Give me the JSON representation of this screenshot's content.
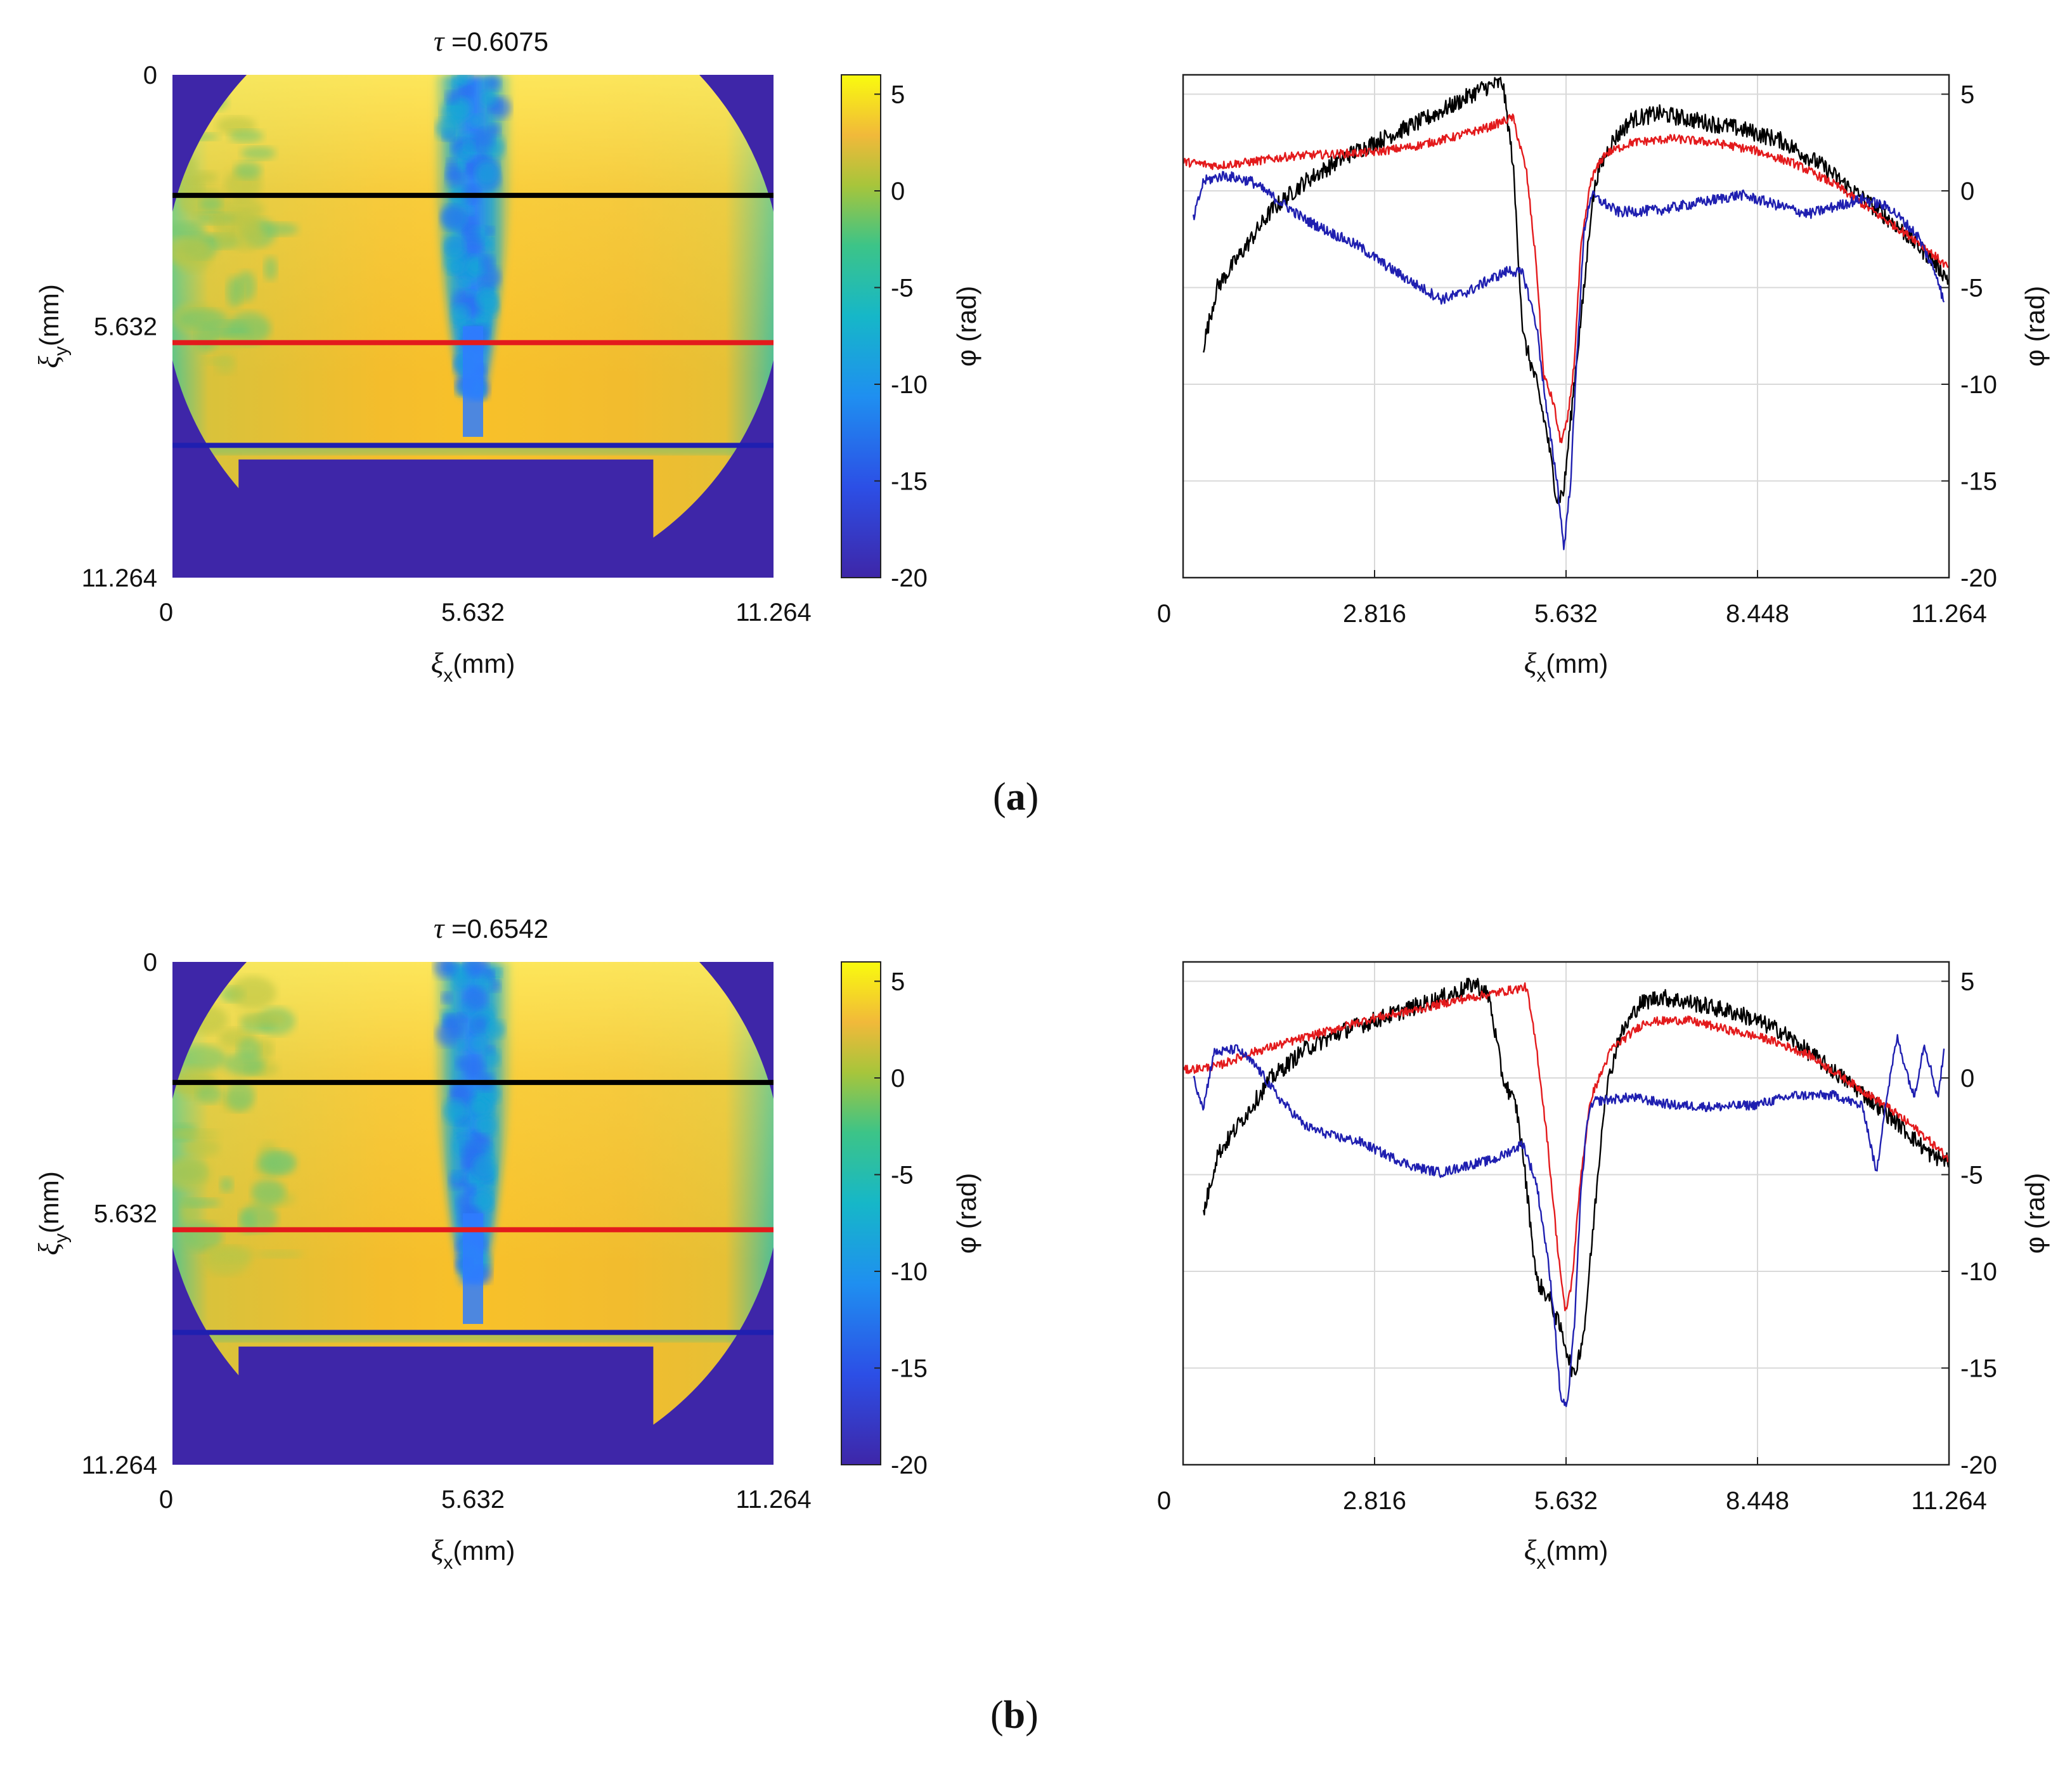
{
  "figure_labels": {
    "a_open": "(",
    "a_letter": "a",
    "a_close": ")",
    "b_open": "(",
    "b_letter": "b",
    "b_close": ")"
  },
  "colors": {
    "black_line": "#000000",
    "red_line": "#e31a1c",
    "blue_line": "#1f1fb0",
    "outside": "#3e26a8",
    "jet_core": "#2f7cff",
    "background_field": "#f6c42a"
  },
  "chart_data": [
    {
      "type": "heatmap",
      "id": "map_a",
      "tau_symbol": "τ",
      "tau_text": " =0.6075",
      "xlabel_symbol": "ξ",
      "xlabel_sub": "x",
      "xlabel_unit": "(mm)",
      "ylabel_symbol": "ξ",
      "ylabel_sub": "y",
      "ylabel_unit": "(mm)",
      "xticks": [
        "0",
        "5.632",
        "11.264"
      ],
      "yticks": [
        "0",
        "5.632",
        "11.264"
      ],
      "xlim": [
        0,
        11.264
      ],
      "ylim": [
        0,
        11.264
      ],
      "profile_rows_mm": {
        "black": 2.7,
        "red": 6.0,
        "blue": 8.3
      },
      "colorbar": {
        "label": "φ (rad)",
        "range": [
          -20,
          6
        ],
        "ticks": [
          "5",
          "0",
          "-5",
          "-10",
          "-15",
          "-20"
        ],
        "tick_values": [
          5,
          0,
          -5,
          -10,
          -15,
          -20
        ]
      }
    },
    {
      "type": "line",
      "id": "profile_a",
      "xlabel_symbol": "ξ",
      "xlabel_sub": "x",
      "xlabel_unit": "(mm)",
      "ylabel": "φ (rad)",
      "xlim": [
        0,
        11.264
      ],
      "ylim": [
        -20,
        6
      ],
      "xticks": [
        "0",
        "2.816",
        "5.632",
        "8.448",
        "11.264"
      ],
      "xtick_values": [
        0,
        2.816,
        5.632,
        8.448,
        11.264
      ],
      "yticks": [
        "5",
        "0",
        "-5",
        "-10",
        "-15",
        "-20"
      ],
      "ytick_values": [
        5,
        0,
        -5,
        -10,
        -15,
        -20
      ],
      "grid": true,
      "series": [
        {
          "name": "black",
          "noise": 0.9,
          "points": [
            [
              0.3,
              -8
            ],
            [
              0.5,
              -5
            ],
            [
              0.9,
              -3
            ],
            [
              1.3,
              -1
            ],
            [
              1.8,
              0.5
            ],
            [
              2.4,
              1.8
            ],
            [
              3.0,
              2.8
            ],
            [
              3.5,
              3.6
            ],
            [
              4.0,
              4.5
            ],
            [
              4.4,
              5.3
            ],
            [
              4.7,
              5.6
            ],
            [
              4.85,
              1.5
            ],
            [
              5.0,
              -7.5
            ],
            [
              5.2,
              -10
            ],
            [
              5.35,
              -12.5
            ],
            [
              5.5,
              -16.0
            ],
            [
              5.6,
              -15.5
            ],
            [
              5.75,
              -10
            ],
            [
              5.9,
              -5
            ],
            [
              6.0,
              -1
            ],
            [
              6.1,
              1
            ],
            [
              6.3,
              2.5
            ],
            [
              6.6,
              3.7
            ],
            [
              7.0,
              4.0
            ],
            [
              7.6,
              3.6
            ],
            [
              8.2,
              3.2
            ],
            [
              8.8,
              2.6
            ],
            [
              9.4,
              1.3
            ],
            [
              10.0,
              -0.4
            ],
            [
              10.5,
              -1.8
            ],
            [
              11.0,
              -3.5
            ],
            [
              11.264,
              -4.6
            ]
          ]
        },
        {
          "name": "red",
          "noise": 0.45,
          "points": [
            [
              0,
              1.5
            ],
            [
              0.5,
              1.3
            ],
            [
              1.0,
              1.5
            ],
            [
              1.6,
              1.8
            ],
            [
              2.2,
              1.9
            ],
            [
              2.8,
              2.0
            ],
            [
              3.4,
              2.3
            ],
            [
              4.0,
              2.8
            ],
            [
              4.5,
              3.3
            ],
            [
              4.85,
              3.8
            ],
            [
              5.05,
              1
            ],
            [
              5.2,
              -4
            ],
            [
              5.3,
              -9.5
            ],
            [
              5.45,
              -11.0
            ],
            [
              5.55,
              -13.0
            ],
            [
              5.65,
              -12.0
            ],
            [
              5.75,
              -9
            ],
            [
              5.85,
              -3
            ],
            [
              6.0,
              0.6
            ],
            [
              6.2,
              1.9
            ],
            [
              6.6,
              2.5
            ],
            [
              7.2,
              2.7
            ],
            [
              7.8,
              2.5
            ],
            [
              8.4,
              2.1
            ],
            [
              9.0,
              1.4
            ],
            [
              9.6,
              0.3
            ],
            [
              10.2,
              -1.2
            ],
            [
              10.8,
              -2.6
            ],
            [
              11.264,
              -4.0
            ]
          ]
        },
        {
          "name": "blue",
          "noise": 0.55,
          "points": [
            [
              0.15,
              -1.5
            ],
            [
              0.3,
              0.5
            ],
            [
              0.6,
              0.8
            ],
            [
              1.0,
              0.5
            ],
            [
              1.4,
              -0.5
            ],
            [
              1.8,
              -1.5
            ],
            [
              2.2,
              -2.2
            ],
            [
              2.6,
              -2.9
            ],
            [
              3.0,
              -3.9
            ],
            [
              3.4,
              -4.8
            ],
            [
              3.8,
              -5.6
            ],
            [
              4.2,
              -5.2
            ],
            [
              4.5,
              -4.6
            ],
            [
              4.8,
              -4.1
            ],
            [
              5.0,
              -4.3
            ],
            [
              5.2,
              -7.0
            ],
            [
              5.35,
              -11.5
            ],
            [
              5.5,
              -15.0
            ],
            [
              5.6,
              -18.5
            ],
            [
              5.7,
              -15
            ],
            [
              5.8,
              -8
            ],
            [
              5.9,
              -2
            ],
            [
              6.0,
              -0.2
            ],
            [
              6.4,
              -1.1
            ],
            [
              7.0,
              -1.0
            ],
            [
              7.6,
              -0.6
            ],
            [
              8.2,
              -0.2
            ],
            [
              8.8,
              -0.8
            ],
            [
              9.2,
              -1.2
            ],
            [
              9.6,
              -0.8
            ],
            [
              10.0,
              -0.4
            ],
            [
              10.4,
              -0.9
            ],
            [
              10.8,
              -2.3
            ],
            [
              11.1,
              -4.5
            ],
            [
              11.2,
              -6.0
            ]
          ]
        }
      ]
    },
    {
      "type": "heatmap",
      "id": "map_b",
      "tau_symbol": "τ",
      "tau_text": " =0.6542",
      "xlabel_symbol": "ξ",
      "xlabel_sub": "x",
      "xlabel_unit": "(mm)",
      "ylabel_symbol": "ξ",
      "ylabel_sub": "y",
      "ylabel_unit": "(mm)",
      "xticks": [
        "0",
        "5.632",
        "11.264"
      ],
      "yticks": [
        "0",
        "5.632",
        "11.264"
      ],
      "xlim": [
        0,
        11.264
      ],
      "ylim": [
        0,
        11.264
      ],
      "profile_rows_mm": {
        "black": 2.7,
        "red": 6.0,
        "blue": 8.3
      },
      "colorbar": {
        "label": "φ (rad)",
        "range": [
          -20,
          6
        ],
        "ticks": [
          "5",
          "0",
          "-5",
          "-10",
          "-15",
          "-20"
        ],
        "tick_values": [
          5,
          0,
          -5,
          -10,
          -15,
          -20
        ]
      }
    },
    {
      "type": "line",
      "id": "profile_b",
      "xlabel_symbol": "ξ",
      "xlabel_sub": "x",
      "xlabel_unit": "(mm)",
      "ylabel": "φ (rad)",
      "xlim": [
        0,
        11.264
      ],
      "ylim": [
        -20,
        6
      ],
      "xticks": [
        "0",
        "2.816",
        "5.632",
        "8.448",
        "11.264"
      ],
      "xtick_values": [
        0,
        2.816,
        5.632,
        8.448,
        11.264
      ],
      "yticks": [
        "5",
        "0",
        "-5",
        "-10",
        "-15",
        "-20"
      ],
      "ytick_values": [
        5,
        0,
        -5,
        -10,
        -15,
        -20
      ],
      "grid": true,
      "series": [
        {
          "name": "black",
          "noise": 0.9,
          "points": [
            [
              0.3,
              -7
            ],
            [
              0.5,
              -4
            ],
            [
              0.9,
              -2
            ],
            [
              1.3,
              0
            ],
            [
              1.8,
              1.5
            ],
            [
              2.4,
              2.5
            ],
            [
              3.0,
              3.2
            ],
            [
              3.6,
              3.9
            ],
            [
              4.0,
              4.4
            ],
            [
              4.3,
              4.9
            ],
            [
              4.5,
              4.2
            ],
            [
              4.7,
              0
            ],
            [
              4.9,
              -1.5
            ],
            [
              5.0,
              -4
            ],
            [
              5.2,
              -10.5
            ],
            [
              5.4,
              -11.5
            ],
            [
              5.6,
              -13.5
            ],
            [
              5.75,
              -15.5
            ],
            [
              5.9,
              -13
            ],
            [
              6.05,
              -7
            ],
            [
              6.2,
              -1
            ],
            [
              6.4,
              2
            ],
            [
              6.7,
              3.8
            ],
            [
              7.0,
              4.2
            ],
            [
              7.6,
              3.8
            ],
            [
              8.2,
              3.3
            ],
            [
              8.8,
              2.4
            ],
            [
              9.4,
              0.8
            ],
            [
              10.0,
              -0.8
            ],
            [
              10.5,
              -2.3
            ],
            [
              11.0,
              -4.0
            ],
            [
              11.264,
              -4.3
            ]
          ]
        },
        {
          "name": "red",
          "noise": 0.45,
          "points": [
            [
              0,
              0.4
            ],
            [
              0.5,
              0.6
            ],
            [
              1.0,
              1.3
            ],
            [
              1.6,
              1.9
            ],
            [
              2.2,
              2.5
            ],
            [
              2.8,
              3.1
            ],
            [
              3.4,
              3.5
            ],
            [
              4.0,
              4.0
            ],
            [
              4.6,
              4.4
            ],
            [
              5.05,
              4.7
            ],
            [
              5.2,
              1.5
            ],
            [
              5.35,
              -3
            ],
            [
              5.5,
              -8.5
            ],
            [
              5.62,
              -12.2
            ],
            [
              5.72,
              -10.5
            ],
            [
              5.85,
              -5
            ],
            [
              6.0,
              -1
            ],
            [
              6.3,
              1.5
            ],
            [
              6.8,
              2.9
            ],
            [
              7.4,
              3.0
            ],
            [
              8.0,
              2.5
            ],
            [
              8.6,
              2.0
            ],
            [
              9.2,
              1.2
            ],
            [
              9.8,
              -0.2
            ],
            [
              10.4,
              -1.6
            ],
            [
              10.9,
              -3.0
            ],
            [
              11.264,
              -4.2
            ]
          ]
        },
        {
          "name": "blue",
          "noise": 0.5,
          "points": [
            [
              0.15,
              0
            ],
            [
              0.3,
              -1.5
            ],
            [
              0.45,
              1.3
            ],
            [
              0.8,
              1.5
            ],
            [
              1.1,
              0.5
            ],
            [
              1.4,
              -1
            ],
            [
              1.8,
              -2.5
            ],
            [
              2.2,
              -3.0
            ],
            [
              2.6,
              -3.3
            ],
            [
              3.0,
              -4.0
            ],
            [
              3.4,
              -4.6
            ],
            [
              3.8,
              -4.9
            ],
            [
              4.2,
              -4.5
            ],
            [
              4.6,
              -4.2
            ],
            [
              5.0,
              -3.4
            ],
            [
              5.2,
              -5.5
            ],
            [
              5.35,
              -9
            ],
            [
              5.45,
              -12
            ],
            [
              5.55,
              -16.5
            ],
            [
              5.65,
              -17
            ],
            [
              5.75,
              -13
            ],
            [
              5.85,
              -6
            ],
            [
              5.95,
              -2
            ],
            [
              6.05,
              -1.2
            ],
            [
              6.6,
              -1.0
            ],
            [
              7.2,
              -1.4
            ],
            [
              7.8,
              -1.5
            ],
            [
              8.4,
              -1.4
            ],
            [
              9.0,
              -0.9
            ],
            [
              9.6,
              -0.9
            ],
            [
              10.0,
              -1.5
            ],
            [
              10.2,
              -5.0
            ],
            [
              10.3,
              -2
            ],
            [
              10.5,
              2.1
            ],
            [
              10.75,
              -1.0
            ],
            [
              10.9,
              1.8
            ],
            [
              11.1,
              -1.0
            ],
            [
              11.2,
              1.6
            ]
          ]
        }
      ]
    }
  ]
}
